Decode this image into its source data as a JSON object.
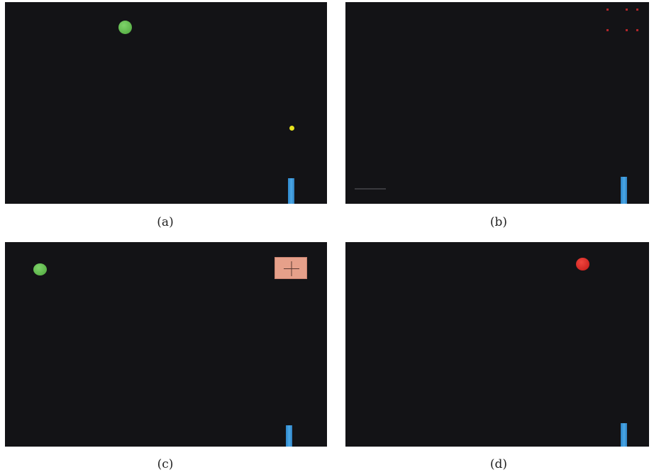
{
  "panels": [
    {
      "id": "a",
      "caption": "(a)"
    },
    {
      "id": "b",
      "caption": "(b)"
    },
    {
      "id": "c",
      "caption": "(c)"
    },
    {
      "id": "d",
      "caption": "(d)"
    }
  ],
  "colors": {
    "background": "#131316",
    "green_ball": "#5cb84a",
    "yellow_ball": "#e6e21e",
    "red_ball": "#d7221f",
    "paddle": "#3d9ad9",
    "target_dots": "#b0262a",
    "cross_box": "#e6a08a"
  },
  "icons": {
    "cross_box": "plus-icon"
  }
}
